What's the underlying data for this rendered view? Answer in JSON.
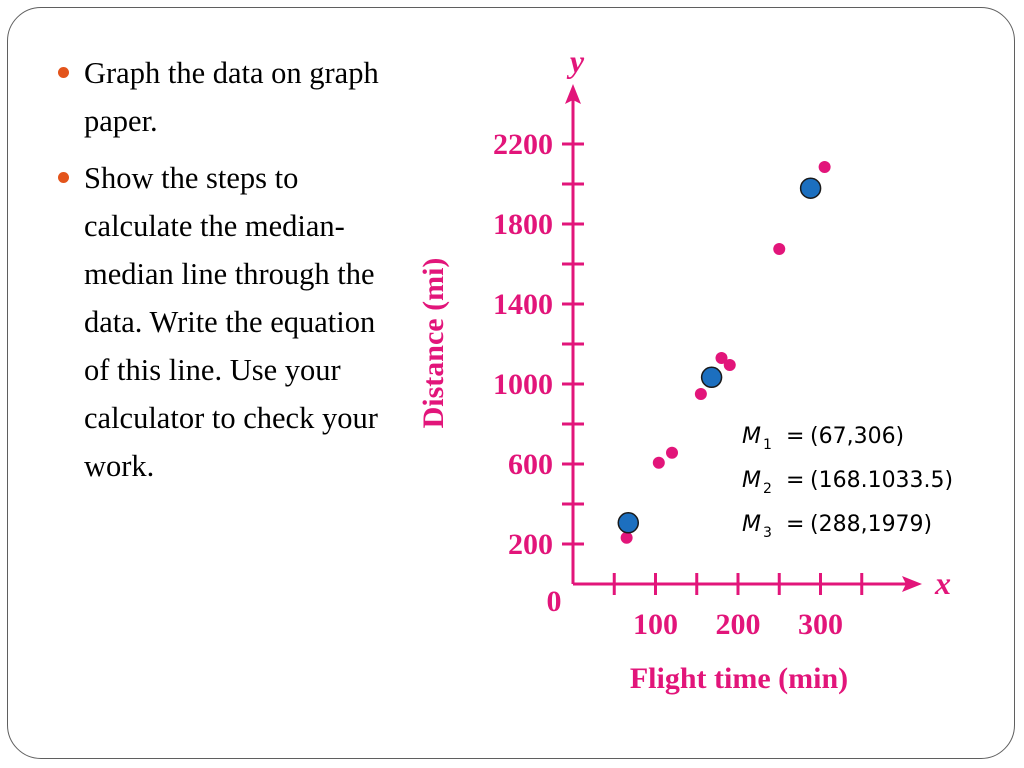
{
  "bullets": [
    {
      "text": "Graph the data on graph paper."
    },
    {
      "text": "Show the steps to calculate the median-median line through the data. Write the equation of this line. Use your calculator to check your work."
    }
  ],
  "colors": {
    "bullet": "#e3541b",
    "chart": "#e2157a",
    "median_points": "#1c6fbf",
    "text": "#000000"
  },
  "chart_data": {
    "type": "scatter",
    "xlabel": "Flight time (min)",
    "ylabel": "Distance (mi)",
    "x_axis_letter": "x",
    "y_axis_letter": "y",
    "origin_label": "0",
    "xlim": [
      0,
      420
    ],
    "ylim": [
      0,
      2400
    ],
    "x_ticks": [
      50,
      100,
      150,
      200,
      250,
      300,
      350
    ],
    "x_tick_labels": [
      {
        "value": 100,
        "label": "100"
      },
      {
        "value": 200,
        "label": "200"
      },
      {
        "value": 300,
        "label": "300"
      }
    ],
    "y_ticks": [
      200,
      400,
      600,
      800,
      1000,
      1200,
      1400,
      1600,
      1800,
      2000,
      2200
    ],
    "y_tick_labels": [
      {
        "value": 200,
        "label": "200"
      },
      {
        "value": 600,
        "label": "600"
      },
      {
        "value": 1000,
        "label": "1000"
      },
      {
        "value": 1400,
        "label": "1400"
      },
      {
        "value": 1800,
        "label": "1800"
      },
      {
        "value": 2200,
        "label": "2200"
      }
    ],
    "grid": false,
    "series": [
      {
        "points": [
          {
            "x": 65,
            "y": 231
          },
          {
            "x": 104,
            "y": 606
          },
          {
            "x": 120,
            "y": 656
          },
          {
            "x": 155,
            "y": 950
          },
          {
            "x": 180,
            "y": 1130
          },
          {
            "x": 190,
            "y": 1095
          },
          {
            "x": 250,
            "y": 1675
          },
          {
            "x": 305,
            "y": 2085
          }
        ]
      },
      {
        "points": [
          {
            "x": 67,
            "y": 306
          },
          {
            "x": 168,
            "y": 1033.5
          },
          {
            "x": 288,
            "y": 1979
          }
        ]
      }
    ],
    "annotations": [
      {
        "var": "M",
        "sub": "1",
        "eq": "=",
        "value": "(67,306)"
      },
      {
        "var": "M",
        "sub": "2",
        "eq": "=",
        "value": "(168.1033.5)"
      },
      {
        "var": "M",
        "sub": "3",
        "eq": "=",
        "value": "(288,1979)"
      }
    ]
  }
}
